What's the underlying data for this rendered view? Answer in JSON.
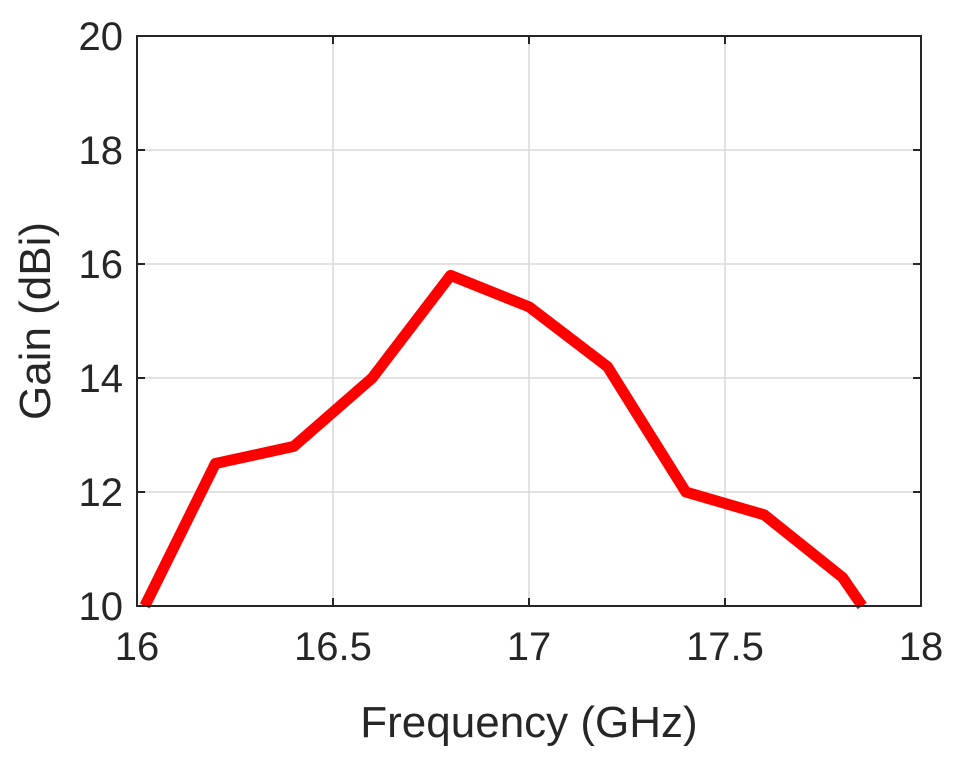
{
  "chart_data": {
    "type": "line",
    "xlabel": "Frequency (GHz)",
    "ylabel": "Gain (dBi)",
    "xlim": [
      16,
      18
    ],
    "ylim": [
      10,
      20
    ],
    "xticks": [
      16,
      16.5,
      17,
      17.5,
      18
    ],
    "yticks": [
      10,
      12,
      14,
      16,
      18,
      20
    ],
    "xtick_labels": [
      "16",
      "16.5",
      "17",
      "17.5",
      "18"
    ],
    "ytick_labels": [
      "10",
      "12",
      "14",
      "16",
      "18",
      "20"
    ],
    "grid": true,
    "series": [
      {
        "color": "#ff0000",
        "x": [
          16.02,
          16.2,
          16.4,
          16.6,
          16.8,
          17.0,
          17.2,
          17.4,
          17.6,
          17.8,
          17.85
        ],
        "y": [
          10.0,
          12.5,
          12.8,
          14.0,
          15.8,
          15.25,
          14.2,
          12.0,
          11.6,
          10.5,
          10.0
        ]
      }
    ]
  }
}
